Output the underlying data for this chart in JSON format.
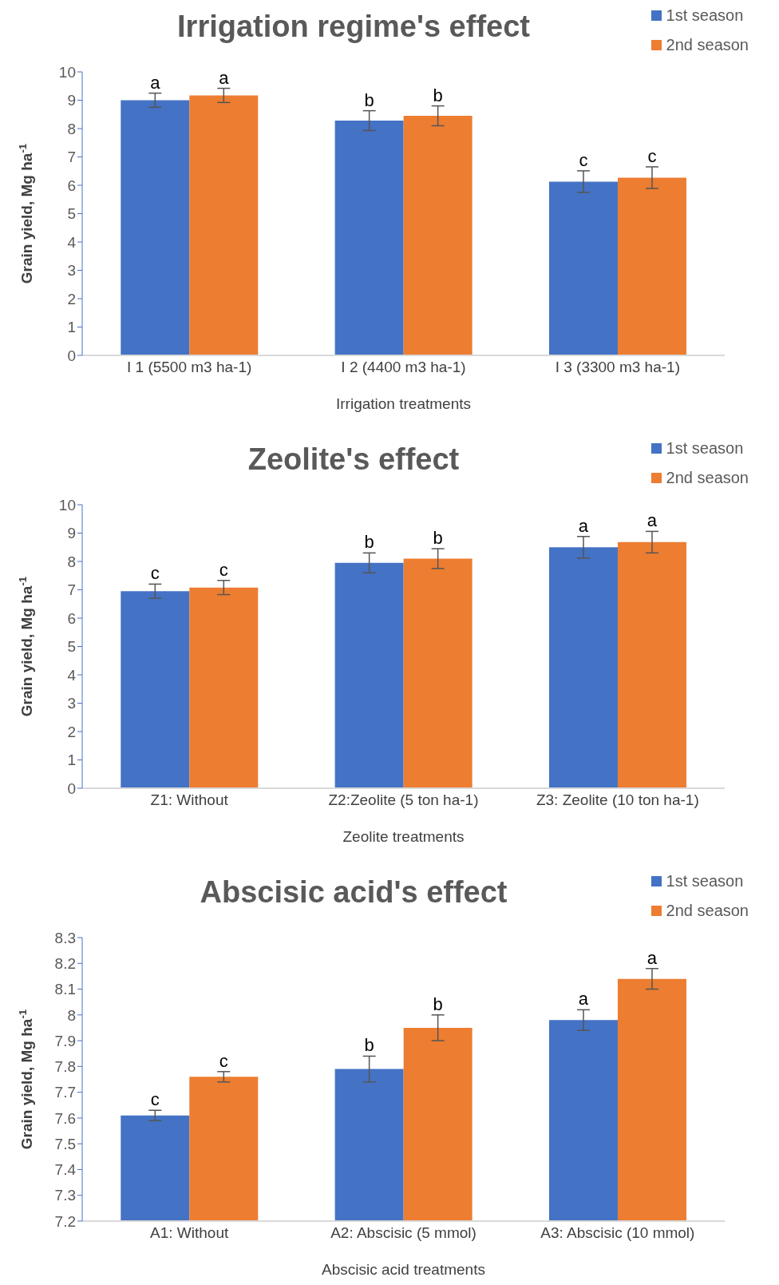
{
  "chart_data": [
    {
      "type": "bar",
      "title": "Irrigation regime's effect",
      "xlabel": "Irrigation treatments",
      "ylabel": "Grain yield, Mg ha$^{-1}$",
      "categories": [
        "I 1 (5500 m3 ha-1)",
        "I 2 (4400 m3 ha-1)",
        "I 3 (3300 m3 ha-1)"
      ],
      "series": [
        {
          "name": "1st season",
          "color": "#4472c4",
          "values": [
            9.0,
            8.28,
            6.13
          ],
          "errors": [
            0.25,
            0.35,
            0.38
          ],
          "value_labels": [
            "a",
            "b",
            "c"
          ]
        },
        {
          "name": "2nd season",
          "color": "#ed7d31",
          "values": [
            9.17,
            8.45,
            6.27
          ],
          "errors": [
            0.25,
            0.35,
            0.38
          ],
          "value_labels": [
            "a",
            "b",
            "c"
          ]
        }
      ],
      "ylim": [
        0,
        10
      ],
      "yticks": [
        0,
        1,
        2,
        3,
        4,
        5,
        6,
        7,
        8,
        9,
        10
      ],
      "legend": "top right"
    },
    {
      "type": "bar",
      "title": "Zeolite's effect",
      "xlabel": "Zeolite treatments",
      "ylabel": "Grain yield, Mg ha$^{-1}$",
      "categories": [
        "Z1: Without",
        "Z2:Zeolite (5 ton ha-1)",
        "Z3: Zeolite (10 ton ha-1)"
      ],
      "series": [
        {
          "name": "1st season",
          "color": "#4472c4",
          "values": [
            6.95,
            7.95,
            8.5
          ],
          "errors": [
            0.25,
            0.35,
            0.38
          ],
          "value_labels": [
            "c",
            "b",
            "a"
          ]
        },
        {
          "name": "2nd season",
          "color": "#ed7d31",
          "values": [
            7.08,
            8.1,
            8.68
          ],
          "errors": [
            0.25,
            0.35,
            0.38
          ],
          "value_labels": [
            "c",
            "b",
            "a"
          ]
        }
      ],
      "ylim": [
        0,
        10
      ],
      "yticks": [
        0,
        1,
        2,
        3,
        4,
        5,
        6,
        7,
        8,
        9,
        10
      ],
      "legend": "top right"
    },
    {
      "type": "bar",
      "title": "Abscisic acid's effect",
      "xlabel": "Abscisic acid treatments",
      "ylabel": "Grain yield, Mg ha$^{-1}$",
      "categories": [
        "A1: Without",
        "A2: Abscisic (5 mmol)",
        "A3: Abscisic (10 mmol)"
      ],
      "series": [
        {
          "name": "1st season",
          "color": "#4472c4",
          "values": [
            7.61,
            7.79,
            7.98
          ],
          "errors": [
            0.02,
            0.05,
            0.04
          ],
          "value_labels": [
            "c",
            "b",
            "a"
          ]
        },
        {
          "name": "2nd season",
          "color": "#ed7d31",
          "values": [
            7.76,
            7.95,
            8.14
          ],
          "errors": [
            0.02,
            0.05,
            0.04
          ],
          "value_labels": [
            "c",
            "b",
            "a"
          ]
        }
      ],
      "ylim": [
        7.2,
        8.3
      ],
      "yticks": [
        7.2,
        7.3,
        7.4,
        7.5,
        7.6,
        7.7,
        7.8,
        7.9,
        8,
        8.1,
        8.2,
        8.3
      ],
      "legend": "top right"
    }
  ]
}
